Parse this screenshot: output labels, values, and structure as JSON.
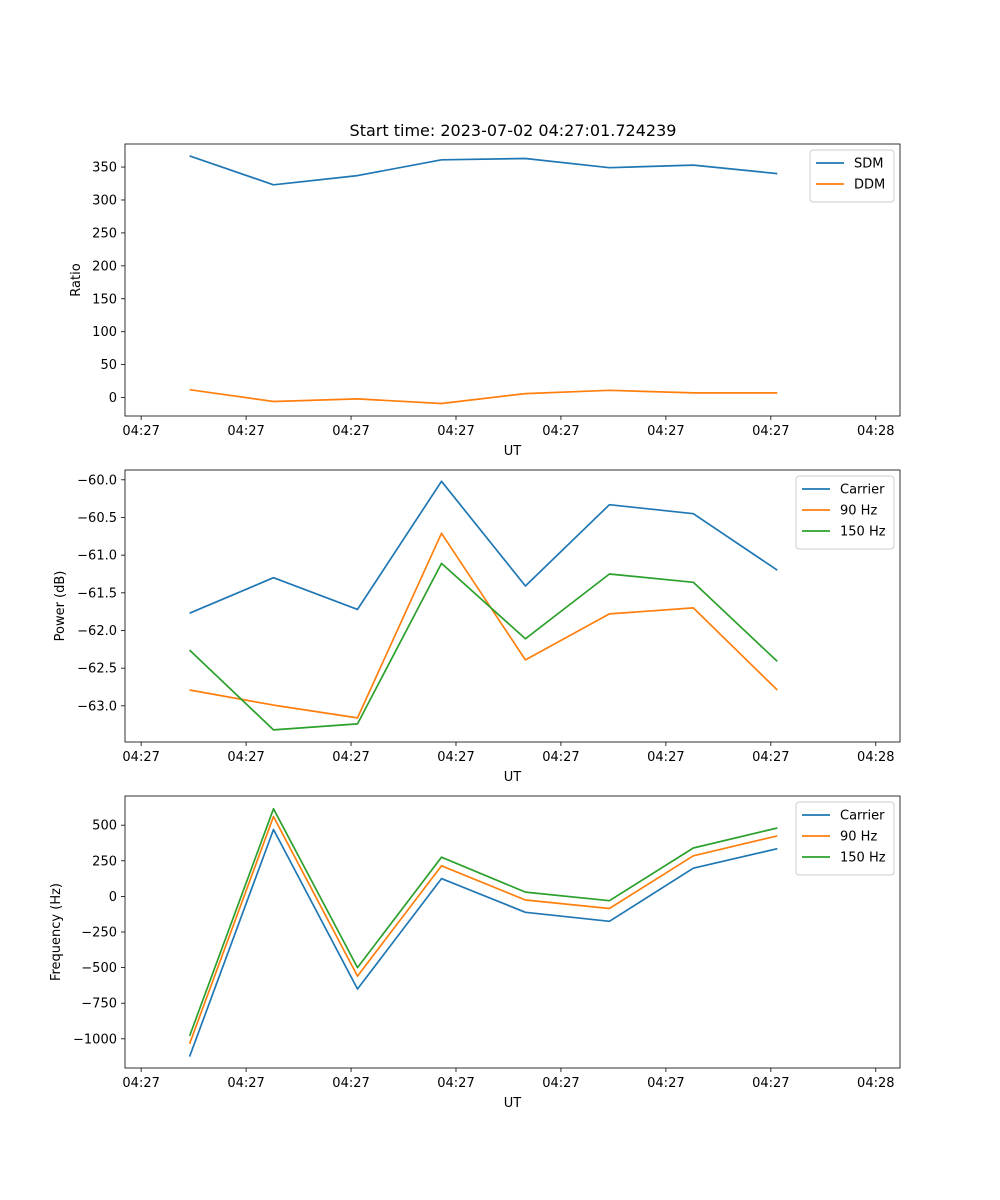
{
  "figure": {
    "title": "Start time: 2023-07-02 04:27:01.724239"
  },
  "chart_data": [
    {
      "type": "line",
      "title": "Start time: 2023-07-02 04:27:01.724239",
      "xlabel": "UT",
      "ylabel": "Ratio",
      "x_ticks": [
        "04:27",
        "04:27",
        "04:27",
        "04:27",
        "04:27",
        "04:27",
        "04:27",
        "04:28"
      ],
      "xlim": [
        0,
        6.0
      ],
      "x": [
        0.5,
        1.15,
        1.8,
        2.45,
        3.1,
        3.75,
        4.4,
        5.05
      ],
      "ylim": [
        -28,
        385
      ],
      "y_ticks": [
        0,
        50,
        100,
        150,
        200,
        250,
        300,
        350
      ],
      "legend": "top-right",
      "series": [
        {
          "name": "SDM",
          "color": "#1f77b4",
          "values": [
            367,
            323,
            337,
            361,
            363,
            349,
            353,
            340
          ]
        },
        {
          "name": "DDM",
          "color": "#ff7f0e",
          "values": [
            12,
            -6,
            -2,
            -9,
            6,
            11,
            7,
            7
          ]
        }
      ]
    },
    {
      "type": "line",
      "xlabel": "UT",
      "ylabel": "Power (dB)",
      "x_ticks": [
        "04:27",
        "04:27",
        "04:27",
        "04:27",
        "04:27",
        "04:27",
        "04:27",
        "04:28"
      ],
      "xlim": [
        0,
        6.0
      ],
      "x": [
        0.5,
        1.15,
        1.8,
        2.45,
        3.1,
        3.75,
        4.4,
        5.05
      ],
      "ylim": [
        -63.48,
        -59.87
      ],
      "y_ticks": [
        -63.0,
        -62.5,
        -62.0,
        -61.5,
        -61.0,
        -60.5,
        -60.0
      ],
      "y_tick_labels": [
        "−63.0",
        "−62.5",
        "−62.0",
        "−61.5",
        "−61.0",
        "−60.5",
        "−60.0"
      ],
      "legend": "top-right",
      "series": [
        {
          "name": "Carrier",
          "color": "#1f77b4",
          "values": [
            -61.77,
            -61.3,
            -61.72,
            -60.02,
            -61.41,
            -60.33,
            -60.45,
            -61.2
          ]
        },
        {
          "name": "90 Hz",
          "color": "#ff7f0e",
          "values": [
            -62.79,
            -62.99,
            -63.16,
            -60.71,
            -62.39,
            -61.78,
            -61.7,
            -62.79
          ]
        },
        {
          "name": "150 Hz",
          "color": "#2ca02c",
          "values": [
            -62.26,
            -63.32,
            -63.24,
            -61.11,
            -62.11,
            -61.25,
            -61.36,
            -62.41
          ]
        }
      ]
    },
    {
      "type": "line",
      "xlabel": "UT",
      "ylabel": "Frequency (Hz)",
      "x_ticks": [
        "04:27",
        "04:27",
        "04:27",
        "04:27",
        "04:27",
        "04:27",
        "04:27",
        "04:28"
      ],
      "xlim": [
        0,
        6.0
      ],
      "x": [
        0.5,
        1.15,
        1.8,
        2.45,
        3.1,
        3.75,
        4.4,
        5.05
      ],
      "ylim": [
        -1205,
        705
      ],
      "y_ticks": [
        -1000,
        -750,
        -500,
        -250,
        0,
        250,
        500
      ],
      "y_tick_labels": [
        "−1000",
        "−750",
        "−500",
        "−250",
        "0",
        "250",
        "500"
      ],
      "legend": "top-right",
      "series": [
        {
          "name": "Carrier",
          "color": "#1f77b4",
          "values": [
            -1125,
            470,
            -650,
            125,
            -112,
            -175,
            198,
            335
          ]
        },
        {
          "name": "90 Hz",
          "color": "#ff7f0e",
          "values": [
            -1035,
            560,
            -560,
            215,
            -25,
            -85,
            285,
            425
          ]
        },
        {
          "name": "150 Hz",
          "color": "#2ca02c",
          "values": [
            -980,
            615,
            -500,
            275,
            30,
            -30,
            340,
            480
          ]
        }
      ]
    }
  ]
}
